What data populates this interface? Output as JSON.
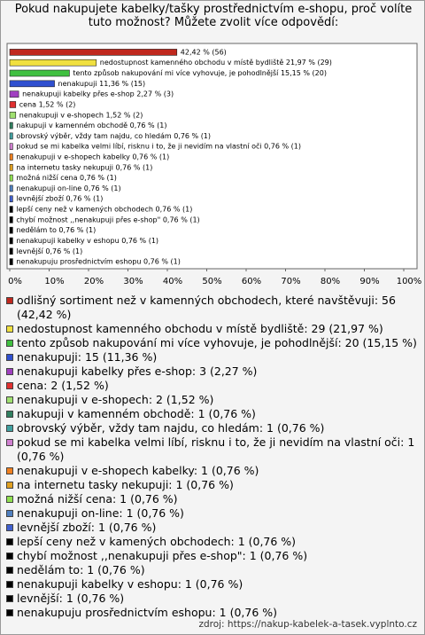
{
  "chart_data": {
    "type": "bar",
    "orientation": "horizontal",
    "title": "Pokud nakupujete kabelky/tašky prostřednictvím e-shopu, proč volíte tuto možnost? Můžete zvolit více odpovědí:",
    "categories": [
      "odlišný sortiment než v kamenných obchodech, které navštěvuji",
      "nedostupnost kamenného obchodu v místě bydliště",
      "tento způsob nakupování mi více vyhovuje, je pohodlnější",
      "nenakupuji",
      "nenakupuji kabelky přes e-shop",
      "cena",
      "nenakupuji v e-shopech",
      "nakupuji v kamenném obchodě",
      "obrovský výběr, vždy tam najdu, co hledám",
      "pokud se mi kabelka velmi líbí, risknu i to, že ji nevidím na vlastní oči",
      "nenakupuji v e-shopech kabelky",
      "na internetu tasky nekupuji",
      "možná nižší cena",
      "nenakupuji on-line",
      "levnější zboží",
      "lepší ceny než v kamených obchodech",
      "chybí možnost ,,nenakupuji přes e-shop\"",
      "nedělám to",
      "nenakupuji kabelky v eshopu",
      "levnější",
      "nenakupuju prosřednictvím eshopu"
    ],
    "values": [
      42.42,
      21.97,
      15.15,
      11.36,
      2.27,
      1.52,
      1.52,
      0.76,
      0.76,
      0.76,
      0.76,
      0.76,
      0.76,
      0.76,
      0.76,
      0.76,
      0.76,
      0.76,
      0.76,
      0.76,
      0.76
    ],
    "value_labels": [
      "42,42 % (56)",
      "nedostupnost kamenného obchodu v místě bydliště 21,97 % (29)",
      "tento způsob nakupování mi více vyhovuje, je pohodlnější 15,15 % (20)",
      "nenakupuji 11,36 % (15)",
      "nenakupuji kabelky přes e-shop 2,27 % (3)",
      "cena 1,52 % (2)",
      "nenakupuji v e-shopech 1,52 % (2)",
      "nakupuji v kamenném obchodě 0,76 % (1)",
      "obrovský výběr, vždy tam najdu, co hledám 0,76 % (1)",
      "pokud se mi kabelka velmi líbí, risknu i to, že ji nevidím na vlastní oči 0,76 % (1)",
      "nenakupuji v e-shopech kabelky 0,76 % (1)",
      "na internetu tasky nekupuji 0,76 % (1)",
      "možná nižší cena 0,76 % (1)",
      "nenakupuji on-line 0,76 % (1)",
      "levnější zboží 0,76 % (1)",
      "lepší ceny než v kamených obchodech 0,76 % (1)",
      "chybí možnost ,,nenakupuji přes e-shop\" 0,76 % (1)",
      "nedělám to 0,76 % (1)",
      "nenakupuji kabelky v eshopu 0,76 % (1)",
      "levnější 0,76 % (1)",
      "nenakupuju prosřednictvím eshopu 0,76 % (1)"
    ],
    "legend_labels": [
      "odlišný sortiment než v kamenných obchodech, které navštěvuji: 56 (42,42 %)",
      "nedostupnost kamenného obchodu v místě bydliště: 29 (21,97 %)",
      "tento způsob nakupování mi více vyhovuje, je pohodlnější: 20 (15,15 %)",
      "nenakupuji: 15 (11,36 %)",
      "nenakupuji kabelky přes e-shop: 3 (2,27 %)",
      "cena: 2 (1,52 %)",
      "nenakupuji v e-shopech: 2 (1,52 %)",
      "nakupuji v kamenném obchodě: 1 (0,76 %)",
      "obrovský výběr, vždy tam najdu, co hledám: 1 (0,76 %)",
      "pokud se mi kabelka velmi líbí, risknu i to, že ji nevidím na vlastní oči: 1 (0,76 %)",
      "nenakupuji v e-shopech kabelky: 1 (0,76 %)",
      "na internetu tasky nekupuji: 1 (0,76 %)",
      "možná nižší cena: 1 (0,76 %)",
      "nenakupuji on-line: 1 (0,76 %)",
      "levnější zboží: 1 (0,76 %)",
      "lepší ceny než v kamených obchodech: 1 (0,76 %)",
      "chybí možnost ,,nenakupuji přes e-shop\": 1 (0,76 %)",
      "nedělám to: 1 (0,76 %)",
      "nenakupuji kabelky v eshopu: 1 (0,76 %)",
      "levnější: 1 (0,76 %)",
      "nenakupuju prosřednictvím eshopu: 1 (0,76 %)"
    ],
    "colors": [
      "#c0281e",
      "#f0e040",
      "#40c040",
      "#3050d0",
      "#a040c0",
      "#e03030",
      "#a0e070",
      "#308060",
      "#40a0a0",
      "#d080d0",
      "#f08020",
      "#e0a020",
      "#90e050",
      "#5080c0",
      "#4060d0",
      "#000000",
      "#000000",
      "#000000",
      "#000000",
      "#000000",
      "#000000"
    ],
    "xlim": [
      0,
      100
    ],
    "xticks": [
      {
        "value": 0,
        "label": "0%"
      },
      {
        "value": 10,
        "label": "10%"
      },
      {
        "value": 20,
        "label": "20%"
      },
      {
        "value": 30,
        "label": "30%"
      },
      {
        "value": 40,
        "label": "40%"
      },
      {
        "value": 50,
        "label": "50%"
      },
      {
        "value": 60,
        "label": "60%"
      },
      {
        "value": 70,
        "label": "70%"
      },
      {
        "value": 80,
        "label": "80%"
      },
      {
        "value": 90,
        "label": "90%"
      },
      {
        "value": 100,
        "label": "100%"
      }
    ],
    "source": "zdroj: https://nakup-kabelek-a-tasek.vyplnto.cz"
  }
}
